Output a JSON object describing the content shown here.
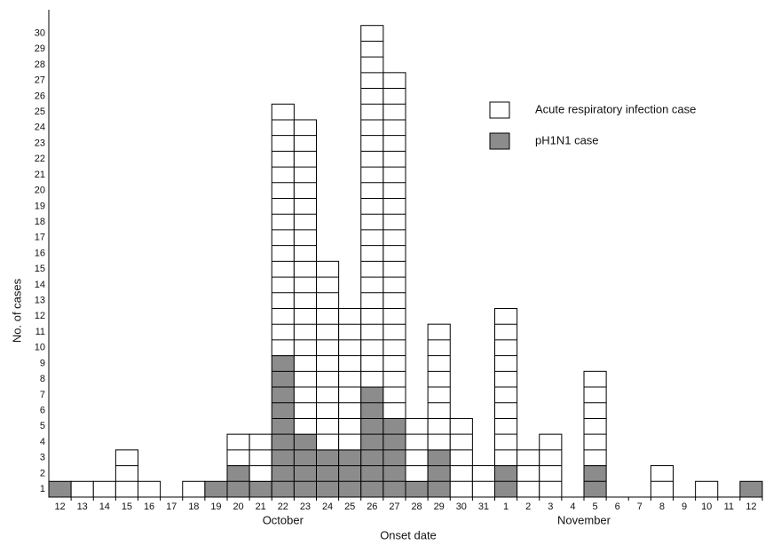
{
  "chart_data": {
    "type": "stacked-bar",
    "x_label": "Onset date",
    "y_label": "No. of cases",
    "categories": [
      "12",
      "13",
      "14",
      "15",
      "16",
      "17",
      "18",
      "19",
      "20",
      "21",
      "22",
      "23",
      "24",
      "25",
      "26",
      "27",
      "28",
      "29",
      "30",
      "31",
      "1",
      "2",
      "3",
      "4",
      "5",
      "6",
      "7",
      "8",
      "9",
      "10",
      "11",
      "12"
    ],
    "month_labels": [
      "October",
      "November"
    ],
    "series": [
      {
        "name": "pH1N1 case",
        "color": "#8c8c8c",
        "values": [
          1,
          0,
          0,
          0,
          0,
          0,
          0,
          1,
          2,
          1,
          9,
          4,
          3,
          3,
          7,
          5,
          1,
          3,
          0,
          0,
          2,
          0,
          0,
          0,
          2,
          0,
          0,
          0,
          0,
          0,
          0,
          1
        ]
      },
      {
        "name": "Acute respiratory infection case",
        "color": "#ffffff",
        "values": [
          0,
          1,
          1,
          3,
          1,
          0,
          1,
          0,
          2,
          3,
          16,
          20,
          12,
          9,
          23,
          22,
          4,
          8,
          5,
          2,
          10,
          3,
          4,
          0,
          6,
          0,
          0,
          2,
          0,
          1,
          0,
          0
        ]
      }
    ],
    "ylim": [
      0,
      31
    ],
    "yticks": [
      1,
      2,
      3,
      4,
      5,
      6,
      7,
      8,
      9,
      10,
      11,
      12,
      13,
      14,
      15,
      16,
      17,
      18,
      19,
      20,
      21,
      22,
      23,
      24,
      25,
      26,
      27,
      28,
      29,
      30
    ]
  }
}
